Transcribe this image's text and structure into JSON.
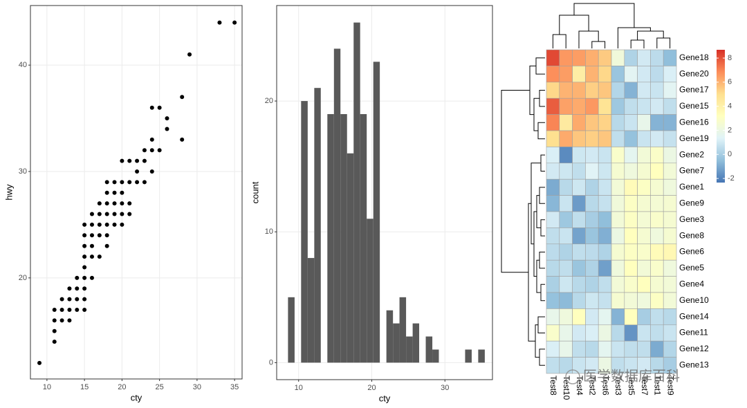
{
  "chart_data": [
    {
      "type": "scatter",
      "x_label": "cty",
      "y_label": "hwy",
      "color": "#000000",
      "grid": true,
      "x": [
        9,
        11,
        11,
        11,
        11,
        12,
        12,
        12,
        13,
        13,
        13,
        13,
        14,
        14,
        14,
        14,
        15,
        15,
        15,
        15,
        15,
        15,
        15,
        15,
        15,
        16,
        16,
        16,
        16,
        16,
        16,
        17,
        17,
        17,
        17,
        17,
        18,
        18,
        18,
        18,
        18,
        18,
        18,
        19,
        19,
        19,
        19,
        19,
        20,
        20,
        20,
        20,
        20,
        20,
        21,
        21,
        21,
        21,
        22,
        22,
        22,
        23,
        23,
        23,
        24,
        24,
        24,
        24,
        25,
        25,
        26,
        26,
        28,
        28,
        29,
        33,
        35
      ],
      "y": [
        12,
        14,
        15,
        16,
        17,
        16,
        17,
        18,
        16,
        17,
        18,
        19,
        17,
        18,
        19,
        20,
        17,
        18,
        19,
        20,
        21,
        22,
        23,
        24,
        25,
        20,
        22,
        23,
        24,
        25,
        26,
        22,
        24,
        25,
        26,
        27,
        23,
        24,
        25,
        26,
        27,
        28,
        29,
        25,
        26,
        27,
        28,
        29,
        25,
        26,
        27,
        28,
        29,
        31,
        26,
        27,
        29,
        31,
        29,
        30,
        31,
        29,
        31,
        32,
        30,
        32,
        33,
        36,
        32,
        36,
        34,
        35,
        33,
        37,
        41,
        44,
        44
      ],
      "xlim": [
        7.8,
        36.0
      ],
      "ylim": [
        10.5,
        45.6
      ],
      "xticks": [
        10,
        15,
        20,
        25,
        30,
        35
      ],
      "yticks": [
        20,
        30,
        40
      ]
    },
    {
      "type": "histogram",
      "x_label": "cty",
      "y_label": "count",
      "color": "#595959",
      "grid": true,
      "bins": [
        8.55,
        9.45,
        10.34,
        11.24,
        12.14,
        13.03,
        13.93,
        14.83,
        15.72,
        16.62,
        17.52,
        18.41,
        19.31,
        20.21,
        21.1,
        22.0,
        22.9,
        23.79,
        24.69,
        25.59,
        26.48,
        27.38,
        28.28,
        29.17,
        30.07,
        30.97,
        31.86,
        32.76,
        33.66,
        34.55,
        35.45
      ],
      "values": [
        5,
        0,
        20,
        8,
        21,
        0,
        19,
        24,
        19,
        16,
        26,
        19,
        11,
        23,
        0,
        4,
        3,
        5,
        2,
        3,
        0,
        2,
        1,
        0,
        0,
        0,
        0,
        1,
        0,
        1
      ],
      "xlim": [
        7.0,
        36.5
      ],
      "ylim": [
        -1.3,
        27.3
      ],
      "xticks": [
        10,
        20,
        30
      ],
      "yticks": [
        0,
        10,
        20
      ]
    },
    {
      "type": "heatmap",
      "x": [
        "Test8",
        "Test10",
        "Test4",
        "Test2",
        "Test6",
        "Test3",
        "Test5",
        "Test7",
        "Test1",
        "Test9"
      ],
      "y": [
        "Gene18",
        "Gene20",
        "Gene17",
        "Gene15",
        "Gene16",
        "Gene19",
        "Gene2",
        "Gene7",
        "Gene1",
        "Gene9",
        "Gene3",
        "Gene8",
        "Gene6",
        "Gene5",
        "Gene4",
        "Gene10",
        "Gene14",
        "Gene11",
        "Gene12",
        "Gene13"
      ],
      "values": [
        [
          8.2,
          6.6,
          6.5,
          6.1,
          5.5,
          2.3,
          0.2,
          1.0,
          0.5,
          -0.5
        ],
        [
          6.8,
          6.5,
          4.2,
          6.0,
          5.2,
          -0.3,
          1.5,
          1.0,
          0.5,
          1.2
        ],
        [
          5.2,
          6.0,
          6.0,
          5.4,
          5.6,
          0.3,
          -0.8,
          1.0,
          0.8,
          1.5
        ],
        [
          7.8,
          6.4,
          6.2,
          6.6,
          4.8,
          -0.2,
          0.6,
          0.8,
          1.0,
          0.6
        ],
        [
          7.0,
          4.4,
          6.2,
          5.6,
          5.3,
          0.4,
          0.8,
          1.8,
          -0.8,
          -0.8
        ],
        [
          5.0,
          6.2,
          5.6,
          5.4,
          5.6,
          0.6,
          -0.4,
          0.8,
          1.0,
          0.7
        ],
        [
          1.2,
          -1.8,
          0.9,
          1.0,
          0.8,
          2.8,
          1.6,
          2.4,
          2.9,
          2.0
        ],
        [
          1.0,
          0.9,
          0.6,
          1.4,
          0.9,
          2.6,
          2.2,
          2.6,
          3.2,
          2.4
        ],
        [
          -1.0,
          0.4,
          0.9,
          0.2,
          0.8,
          2.4,
          3.4,
          3.0,
          2.6,
          2.2
        ],
        [
          -0.7,
          0.8,
          -1.4,
          0.4,
          0.7,
          2.3,
          3.0,
          2.6,
          2.5,
          2.6
        ],
        [
          1.0,
          -0.2,
          0.6,
          0.0,
          -0.5,
          2.4,
          3.0,
          2.5,
          2.8,
          2.6
        ],
        [
          0.6,
          0.8,
          -1.2,
          -0.3,
          -0.9,
          2.0,
          3.2,
          2.6,
          2.2,
          2.6
        ],
        [
          0.5,
          0.2,
          0.6,
          0.5,
          0.2,
          2.6,
          3.0,
          2.8,
          3.4,
          3.6
        ],
        [
          0.4,
          0.6,
          -0.3,
          0.2,
          -1.3,
          2.2,
          3.2,
          2.4,
          2.8,
          2.2
        ],
        [
          0.1,
          0.9,
          0.4,
          0.2,
          0.6,
          2.4,
          2.8,
          3.2,
          2.6,
          2.4
        ],
        [
          -0.4,
          -0.6,
          0.4,
          0.9,
          0.7,
          2.6,
          2.4,
          2.2,
          3.0,
          2.4
        ],
        [
          1.8,
          2.2,
          3.2,
          1.0,
          1.6,
          -0.8,
          3.2,
          0.0,
          0.6,
          0.4
        ],
        [
          2.8,
          1.8,
          1.0,
          1.2,
          2.0,
          0.4,
          -1.6,
          0.8,
          0.6,
          0.8
        ],
        [
          1.2,
          1.8,
          0.6,
          0.4,
          1.6,
          0.8,
          0.6,
          0.6,
          -1.0,
          0.3
        ],
        [
          0.6,
          0.4,
          0.8,
          1.0,
          2.0,
          0.6,
          0.8,
          1.0,
          0.4,
          0.0
        ]
      ],
      "colorscale": [
        "#4575b4",
        "#91bfdb",
        "#e0f3f8",
        "#ffffbf",
        "#fee090",
        "#fc8d59",
        "#d73027"
      ],
      "zlim": [
        -2.34,
        8.69
      ],
      "zticks": [
        -2,
        0,
        2,
        4,
        6,
        8
      ],
      "watermark": "医学数据库百科"
    }
  ]
}
